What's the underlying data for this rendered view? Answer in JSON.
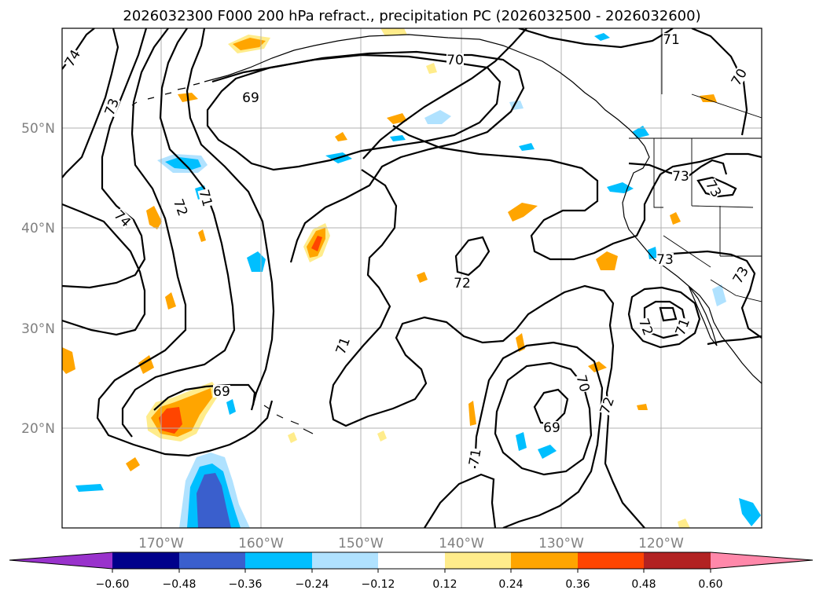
{
  "title": "2026032300 F000 200 hPa refract., precipitation PC (2026032500 - 2026032600)",
  "lat_labels": [
    "50°N",
    "40°N",
    "30°N",
    "20°N"
  ],
  "lon_labels": [
    "170°W",
    "160°W",
    "150°W",
    "140°W",
    "130°W",
    "120°W"
  ],
  "contour_labels": [
    {
      "text": "74"
    },
    {
      "text": "73"
    },
    {
      "text": "74"
    },
    {
      "text": "72"
    },
    {
      "text": "71"
    },
    {
      "text": "69"
    },
    {
      "text": "70"
    },
    {
      "text": "71"
    },
    {
      "text": "70"
    },
    {
      "text": "73"
    },
    {
      "text": "73"
    },
    {
      "text": "73"
    },
    {
      "text": "73"
    },
    {
      "text": "72"
    },
    {
      "text": "71"
    },
    {
      "text": "69"
    },
    {
      "text": "70"
    },
    {
      "text": "72"
    },
    {
      "text": "69"
    },
    {
      "text": "71"
    },
    {
      "text": "72"
    },
    {
      "text": "71"
    }
  ],
  "colorbar": {
    "ticks": [
      "−0.60",
      "−0.48",
      "−0.36",
      "−0.24",
      "−0.12",
      "0.12",
      "0.24",
      "0.36",
      "0.48",
      "0.60"
    ],
    "colors": [
      "#9932CC",
      "#00008B",
      "#3A5FCD",
      "#00BFFF",
      "#B0E2FF",
      "#FFFFFF",
      "#FFEC8B",
      "#FFA500",
      "#FF4500",
      "#B22222",
      "#FF88AA"
    ]
  },
  "colors": {
    "neg_light": "#B0E2FF",
    "neg_mid": "#00BFFF",
    "neg_dark": "#3A5FCD",
    "pos_light": "#FFEC8B",
    "pos_mid": "#FFA500",
    "pos_dark": "#FF4500"
  }
}
